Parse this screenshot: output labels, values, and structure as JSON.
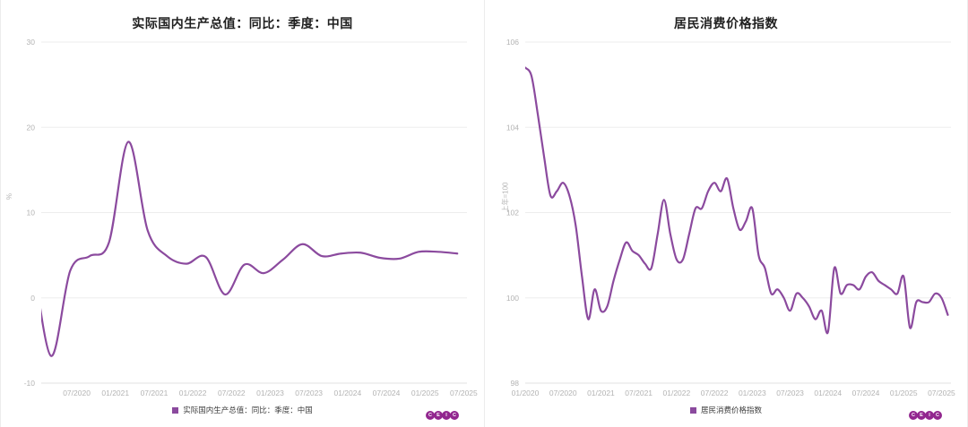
{
  "brand": {
    "logo_letters": [
      "C",
      "E",
      "I",
      "C"
    ],
    "logo_color": "#92278F"
  },
  "chart_data": [
    {
      "type": "line",
      "title": "实际国内生产总值：同比：季度：中国",
      "legend": "实际国内生产总值：同比：季度：中国",
      "ylabel": "%",
      "line_color": "#8B4A9E",
      "grid": "horizontal",
      "legend_position": "bottom-center",
      "ylim": [
        -10,
        30
      ],
      "yticks": [
        30,
        20,
        10,
        0,
        -10
      ],
      "x_unit": "months from 2020-01 (quarterly points at quarter-end month)",
      "xlim": [
        0.5,
        66.5
      ],
      "xtick_pos": [
        6,
        12,
        18,
        24,
        30,
        36,
        42,
        48,
        54,
        60,
        66
      ],
      "xtick_labels": [
        "07/2020",
        "01/2021",
        "07/2021",
        "01/2022",
        "07/2022",
        "01/2023",
        "07/2023",
        "01/2024",
        "07/2024",
        "01/2025",
        "07/2025"
      ],
      "x": [
        -1,
        2,
        5,
        8,
        11,
        14,
        17,
        20,
        23,
        26,
        29,
        32,
        35,
        38,
        41,
        44,
        47,
        50,
        53,
        56,
        59,
        62,
        65
      ],
      "values": [
        6.0,
        -6.8,
        3.2,
        4.9,
        6.5,
        18.3,
        7.9,
        4.9,
        4.0,
        4.8,
        0.4,
        3.9,
        2.9,
        4.5,
        6.3,
        4.9,
        5.2,
        5.3,
        4.7,
        4.6,
        5.4,
        5.4,
        5.2
      ]
    },
    {
      "type": "line",
      "title": "居民消费价格指数",
      "legend": "居民消费价格指数",
      "ylabel": "上年=100",
      "line_color": "#8B4A9E",
      "grid": "horizontal",
      "legend_position": "bottom-center",
      "ylim": [
        98,
        106
      ],
      "yticks": [
        106,
        104,
        102,
        100,
        98
      ],
      "x_unit": "months from 2020-01 (monthly points)",
      "xlim": [
        0,
        67.5
      ],
      "xtick_pos": [
        0,
        6,
        12,
        18,
        24,
        30,
        36,
        42,
        48,
        54,
        60,
        66
      ],
      "xtick_labels": [
        "01/2020",
        "07/2020",
        "01/2021",
        "07/2021",
        "01/2022",
        "07/2022",
        "01/2023",
        "07/2023",
        "01/2024",
        "07/2024",
        "01/2025",
        "07/2025"
      ],
      "x": [
        0,
        1,
        2,
        3,
        4,
        5,
        6,
        7,
        8,
        9,
        10,
        11,
        12,
        13,
        14,
        15,
        16,
        17,
        18,
        19,
        20,
        21,
        22,
        23,
        24,
        25,
        26,
        27,
        28,
        29,
        30,
        31,
        32,
        33,
        34,
        35,
        36,
        37,
        38,
        39,
        40,
        41,
        42,
        43,
        44,
        45,
        46,
        47,
        48,
        49,
        50,
        51,
        52,
        53,
        54,
        55,
        56,
        57,
        58,
        59,
        60,
        61,
        62,
        63,
        64,
        65,
        66,
        67
      ],
      "values": [
        105.4,
        105.2,
        104.3,
        103.3,
        102.4,
        102.5,
        102.7,
        102.4,
        101.7,
        100.5,
        99.5,
        100.2,
        99.7,
        99.8,
        100.4,
        100.9,
        101.3,
        101.1,
        101.0,
        100.8,
        100.7,
        101.5,
        102.3,
        101.5,
        100.9,
        100.9,
        101.5,
        102.1,
        102.1,
        102.5,
        102.7,
        102.5,
        102.8,
        102.1,
        101.6,
        101.8,
        102.1,
        101.0,
        100.7,
        100.1,
        100.2,
        100.0,
        99.7,
        100.1,
        100.0,
        99.8,
        99.5,
        99.7,
        99.2,
        100.7,
        100.1,
        100.3,
        100.3,
        100.2,
        100.5,
        100.6,
        100.4,
        100.3,
        100.2,
        100.1,
        100.5,
        99.3,
        99.9,
        99.9,
        99.9,
        100.1,
        100.0,
        99.6
      ]
    }
  ]
}
